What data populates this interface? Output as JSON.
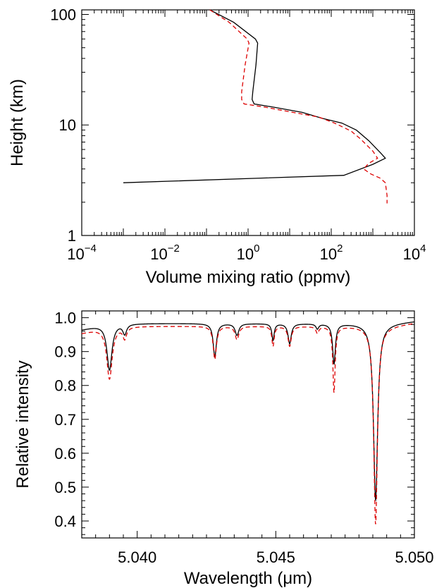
{
  "chart_data": [
    {
      "type": "line",
      "xlabel": "Volume mixing ratio (ppmv)",
      "ylabel": "Height (km)",
      "x_scale": "log",
      "y_scale": "log",
      "xlim": [
        0.0001,
        10000
      ],
      "ylim": [
        1,
        110
      ],
      "x_ticks": [
        {
          "value": 0.0001,
          "base": "10",
          "exp": "−4"
        },
        {
          "value": 0.01,
          "base": "10",
          "exp": "−2"
        },
        {
          "value": 1,
          "base": "10",
          "exp": "0"
        },
        {
          "value": 100,
          "base": "10",
          "exp": "2"
        },
        {
          "value": 10000,
          "base": "10",
          "exp": "4"
        }
      ],
      "y_ticks": [
        {
          "value": 1,
          "label": "1"
        },
        {
          "value": 10,
          "label": "10"
        },
        {
          "value": 100,
          "label": "100"
        }
      ],
      "series": [
        {
          "color": "#000000",
          "dash": "solid",
          "points": [
            [
              0.12,
              110
            ],
            [
              0.45,
              85
            ],
            [
              1.5,
              60
            ],
            [
              1.7,
              55
            ],
            [
              1.55,
              35
            ],
            [
              1.3,
              20
            ],
            [
              1.25,
              17
            ],
            [
              1.4,
              15.5
            ],
            [
              4,
              14.5
            ],
            [
              20,
              13
            ],
            [
              60,
              11.5
            ],
            [
              180,
              10.4
            ],
            [
              400,
              9
            ],
            [
              800,
              7.2
            ],
            [
              1600,
              5.5
            ],
            [
              2000,
              5.0
            ],
            [
              1000,
              4.4
            ],
            [
              200,
              3.5
            ],
            [
              0.001,
              3.0
            ]
          ]
        },
        {
          "color": "#dd0000",
          "dash": "dashed",
          "points": [
            [
              0.12,
              110
            ],
            [
              0.35,
              85
            ],
            [
              0.95,
              60
            ],
            [
              1.05,
              55
            ],
            [
              0.85,
              35
            ],
            [
              0.7,
              20
            ],
            [
              0.7,
              17
            ],
            [
              0.8,
              15.5
            ],
            [
              2.5,
              14.5
            ],
            [
              12,
              13
            ],
            [
              50,
              11.8
            ],
            [
              120,
              10.4
            ],
            [
              300,
              8.8
            ],
            [
              500,
              7.5
            ],
            [
              1000,
              5.8
            ],
            [
              1300,
              5.0
            ],
            [
              800,
              4.5
            ],
            [
              600,
              4.0
            ],
            [
              900,
              3.6
            ],
            [
              1500,
              3.3
            ],
            [
              2000,
              3.0
            ],
            [
              2200,
              2.3
            ],
            [
              2200,
              1.95
            ]
          ]
        }
      ]
    },
    {
      "type": "line",
      "xlabel": "Wavelength (μm)",
      "ylabel": "Relative intensity",
      "xlim": [
        5.038,
        5.05
      ],
      "ylim": [
        0.35,
        1.02
      ],
      "x_ticks": [
        {
          "value": 5.04,
          "label": "5.040"
        },
        {
          "value": 5.045,
          "label": "5.045"
        },
        {
          "value": 5.05,
          "label": "5.050"
        }
      ],
      "y_ticks": [
        {
          "value": 0.4,
          "label": "0.4"
        },
        {
          "value": 0.5,
          "label": "0.5"
        },
        {
          "value": 0.6,
          "label": "0.6"
        },
        {
          "value": 0.7,
          "label": "0.7"
        },
        {
          "value": 0.8,
          "label": "0.8"
        },
        {
          "value": 0.9,
          "label": "0.9"
        },
        {
          "value": 1.0,
          "label": "1.0"
        }
      ],
      "series": [
        {
          "color": "#000000",
          "dash": "solid",
          "baseline": 0.983,
          "start": 0.965,
          "end": 0.99,
          "lines": [
            {
              "center": 5.039,
              "depth": 0.14,
              "width": 0.00011
            },
            {
              "center": 5.03955,
              "depth": 0.03,
              "width": 8e-05
            },
            {
              "center": 5.0428,
              "depth": 0.1,
              "width": 7e-05
            },
            {
              "center": 5.0436,
              "depth": 0.035,
              "width": 8e-05
            },
            {
              "center": 5.0449,
              "depth": 0.05,
              "width": 5e-05
            },
            {
              "center": 5.0455,
              "depth": 0.06,
              "width": 7e-05
            },
            {
              "center": 5.0465,
              "depth": 0.015,
              "width": 6e-05
            },
            {
              "center": 5.0471,
              "depth": 0.12,
              "width": 6e-05
            },
            {
              "center": 5.0486,
              "depth": 0.53,
              "width": 9e-05
            }
          ]
        },
        {
          "color": "#dd0000",
          "dash": "dashed",
          "baseline": 0.975,
          "start": 0.955,
          "end": 0.985,
          "lines": [
            {
              "center": 5.039,
              "depth": 0.16,
              "width": 0.00012
            },
            {
              "center": 5.03955,
              "depth": 0.035,
              "width": 8e-05
            },
            {
              "center": 5.0428,
              "depth": 0.1,
              "width": 7e-05
            },
            {
              "center": 5.0436,
              "depth": 0.04,
              "width": 8e-05
            },
            {
              "center": 5.0449,
              "depth": 0.06,
              "width": 5e-05
            },
            {
              "center": 5.0455,
              "depth": 0.06,
              "width": 7e-05
            },
            {
              "center": 5.0465,
              "depth": 0.02,
              "width": 6e-05
            },
            {
              "center": 5.0471,
              "depth": 0.2,
              "width": 5e-05
            },
            {
              "center": 5.0486,
              "depth": 0.6,
              "width": 8e-05
            }
          ]
        }
      ]
    }
  ]
}
